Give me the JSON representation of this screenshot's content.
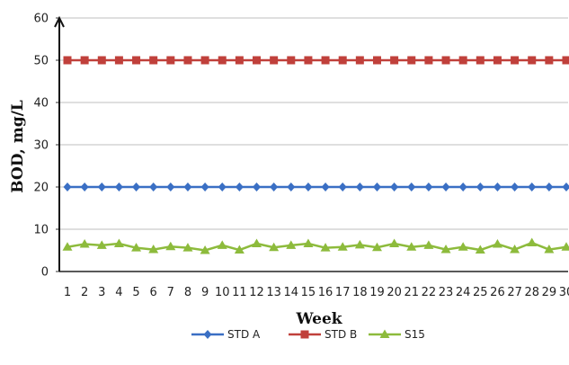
{
  "chart_data": {
    "type": "line",
    "title": "",
    "xlabel": "Week",
    "ylabel": "BOD, mg/L",
    "ylim": [
      0,
      60
    ],
    "yticks": [
      0,
      10,
      20,
      30,
      40,
      50,
      60
    ],
    "x": [
      1,
      2,
      3,
      4,
      5,
      6,
      7,
      8,
      9,
      10,
      11,
      12,
      13,
      14,
      15,
      16,
      17,
      18,
      19,
      20,
      21,
      22,
      23,
      24,
      25,
      26,
      27,
      28,
      29,
      30
    ],
    "grid": true,
    "legend_position": "bottom",
    "series": [
      {
        "name": "STD A",
        "color": "#3a6fc4",
        "marker": "diamond",
        "values": [
          20,
          20,
          20,
          20,
          20,
          20,
          20,
          20,
          20,
          20,
          20,
          20,
          20,
          20,
          20,
          20,
          20,
          20,
          20,
          20,
          20,
          20,
          20,
          20,
          20,
          20,
          20,
          20,
          20,
          20
        ]
      },
      {
        "name": "STD B",
        "color": "#c0403b",
        "marker": "square",
        "values": [
          50,
          50,
          50,
          50,
          50,
          50,
          50,
          50,
          50,
          50,
          50,
          50,
          50,
          50,
          50,
          50,
          50,
          50,
          50,
          50,
          50,
          50,
          50,
          50,
          50,
          50,
          50,
          50,
          50,
          50
        ]
      },
      {
        "name": "S15",
        "color": "#8dbb3c",
        "marker": "triangle",
        "values": [
          5.8,
          6.5,
          6.2,
          6.6,
          5.6,
          5.2,
          5.9,
          5.6,
          5.0,
          6.2,
          5.1,
          6.6,
          5.7,
          6.2,
          6.6,
          5.6,
          5.8,
          6.3,
          5.7,
          6.6,
          5.8,
          6.2,
          5.2,
          5.8,
          5.1,
          6.5,
          5.2,
          6.8,
          5.2,
          5.8
        ]
      }
    ]
  }
}
